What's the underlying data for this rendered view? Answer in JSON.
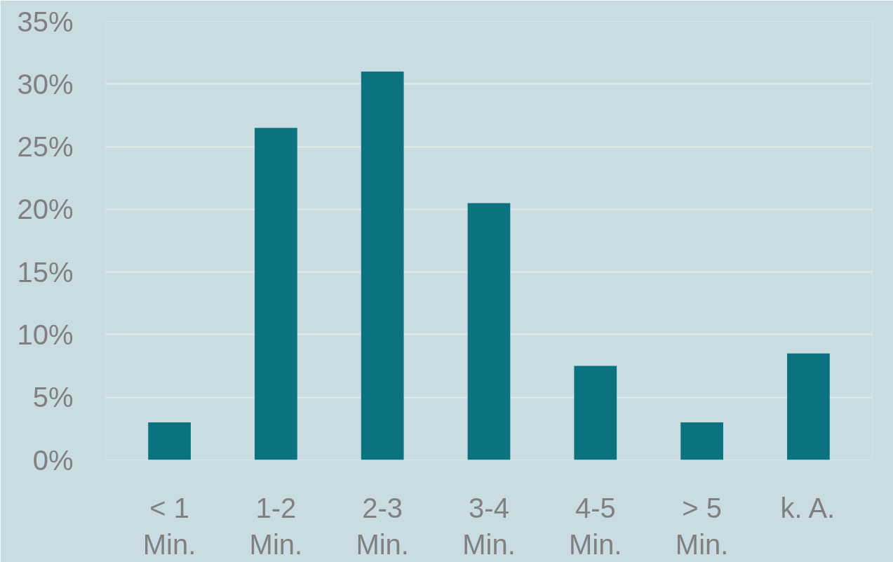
{
  "chart_data": {
    "type": "bar",
    "categories": [
      "< 1\nMin.",
      "1-2\nMin.",
      "2-3\nMin.",
      "3-4\nMin.",
      "4-5\nMin.",
      "> 5\nMin.",
      "k. A."
    ],
    "values": [
      3,
      26.5,
      31,
      20.5,
      7.5,
      3,
      8.5
    ],
    "color": "#0b7380",
    "ylim": [
      0,
      35
    ],
    "yticks": [
      {
        "value": 0,
        "label": "0%"
      },
      {
        "value": 5,
        "label": "5%"
      },
      {
        "value": 10,
        "label": "10%"
      },
      {
        "value": 15,
        "label": "15%"
      },
      {
        "value": 20,
        "label": "20%"
      },
      {
        "value": 25,
        "label": "25%"
      },
      {
        "value": 30,
        "label": "30%"
      },
      {
        "value": 35,
        "label": "35%"
      }
    ],
    "grid": "y"
  }
}
